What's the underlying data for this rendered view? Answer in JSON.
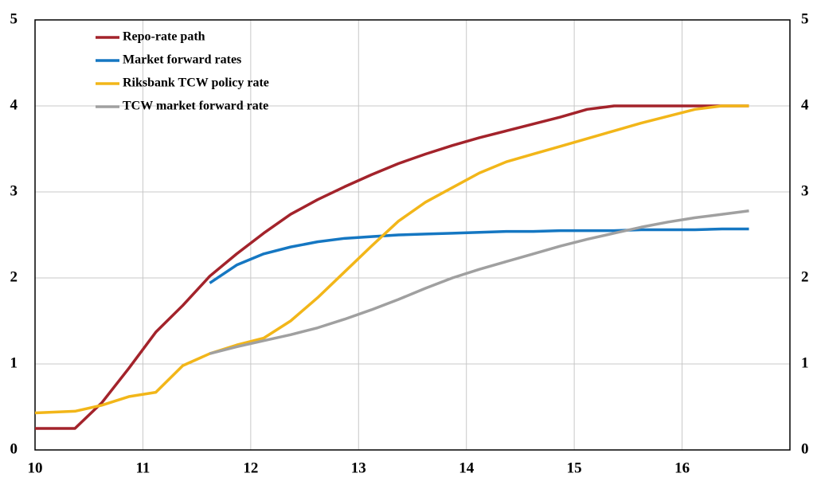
{
  "chart_data": {
    "type": "line",
    "x": [
      10,
      10.37,
      10.62,
      10.87,
      11.12,
      11.37,
      11.62,
      11.87,
      12.12,
      12.37,
      12.62,
      12.87,
      13.12,
      13.37,
      13.62,
      13.87,
      14.12,
      14.37,
      14.62,
      14.87,
      15.12,
      15.37,
      15.62,
      15.87,
      16.12,
      16.37,
      16.62
    ],
    "series": [
      {
        "name": "Repo-rate path",
        "color": "#a3232b",
        "values": [
          0.25,
          0.25,
          0.55,
          0.95,
          1.37,
          1.68,
          2.02,
          2.28,
          2.52,
          2.74,
          2.91,
          3.06,
          3.2,
          3.33,
          3.44,
          3.54,
          3.63,
          3.71,
          3.79,
          3.87,
          3.96,
          4.0,
          4.0,
          4.0,
          4.0,
          4.0,
          4.0
        ]
      },
      {
        "name": "Market forward rates",
        "color": "#1577c2",
        "values": [
          null,
          null,
          null,
          null,
          null,
          null,
          1.94,
          2.15,
          2.28,
          2.36,
          2.42,
          2.46,
          2.48,
          2.5,
          2.51,
          2.52,
          2.53,
          2.54,
          2.54,
          2.55,
          2.55,
          2.55,
          2.56,
          2.56,
          2.56,
          2.57,
          2.57
        ]
      },
      {
        "name": "Riksbank TCW policy rate",
        "color": "#f2b619",
        "values": [
          0.43,
          0.45,
          0.52,
          0.62,
          0.67,
          0.98,
          1.12,
          1.22,
          1.3,
          1.5,
          1.77,
          2.07,
          2.37,
          2.66,
          2.88,
          3.05,
          3.22,
          3.35,
          3.44,
          3.53,
          3.62,
          3.71,
          3.8,
          3.88,
          3.96,
          4.0,
          4.0
        ]
      },
      {
        "name": "TCW market forward rate",
        "color": "#a0a0a0",
        "values": [
          null,
          null,
          null,
          null,
          null,
          null,
          1.12,
          1.2,
          1.27,
          1.34,
          1.42,
          1.52,
          1.63,
          1.75,
          1.88,
          2.0,
          2.1,
          2.19,
          2.28,
          2.37,
          2.45,
          2.52,
          2.59,
          2.65,
          2.7,
          2.74,
          2.78
        ]
      }
    ],
    "xlim": [
      10,
      17
    ],
    "xticks": [
      10,
      11,
      12,
      13,
      14,
      15,
      16
    ],
    "ylim": [
      0,
      5
    ],
    "yticks": [
      0,
      1,
      2,
      3,
      4,
      5
    ],
    "grid": true,
    "legend": "upper left"
  }
}
